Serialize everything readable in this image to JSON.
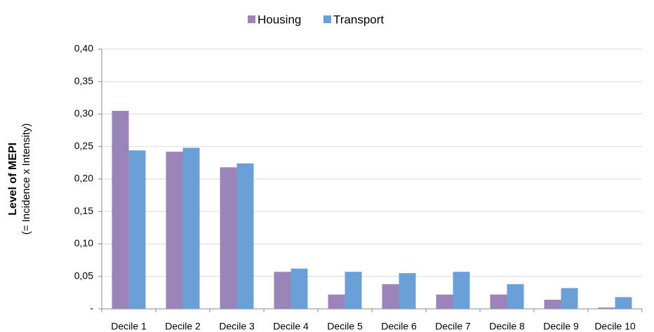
{
  "chart_data": {
    "type": "bar",
    "y_label": "Level of MEPI",
    "y_label_note": "(= Incidence x Intensity)",
    "categories": [
      "Decile 1",
      "Decile 2",
      "Decile 3",
      "Decile 4",
      "Decile 5",
      "Decile 6",
      "Decile 7",
      "Decile 8",
      "Decile 9",
      "Decile 10"
    ],
    "series": [
      {
        "name": "Housing",
        "color": "#9b84b8",
        "values": [
          0.305,
          0.242,
          0.218,
          0.057,
          0.022,
          0.038,
          0.022,
          0.022,
          0.014,
          0.002
        ]
      },
      {
        "name": "Transport",
        "color": "#6b9fd8",
        "values": [
          0.244,
          0.248,
          0.224,
          0.062,
          0.057,
          0.055,
          0.057,
          0.038,
          0.032,
          0.018
        ]
      }
    ],
    "ylim": [
      0,
      0.4
    ],
    "yticks": [
      {
        "value": 0,
        "label": "-"
      },
      {
        "value": 0.05,
        "label": "0,05"
      },
      {
        "value": 0.1,
        "label": "0,10"
      },
      {
        "value": 0.15,
        "label": "0,15"
      },
      {
        "value": 0.2,
        "label": "0,20"
      },
      {
        "value": 0.25,
        "label": "0,25"
      },
      {
        "value": 0.3,
        "label": "0,30"
      },
      {
        "value": 0.35,
        "label": "0,35"
      },
      {
        "value": 0.4,
        "label": "0,40"
      }
    ],
    "grid": true,
    "legend": "top"
  }
}
